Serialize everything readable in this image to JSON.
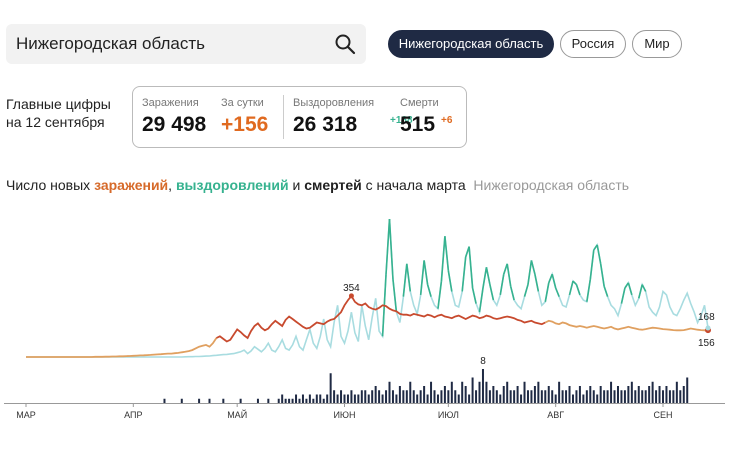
{
  "search": {
    "value": "Нижегородская область"
  },
  "tabs": [
    {
      "label": "Нижегородская область",
      "active": true
    },
    {
      "label": "Россия",
      "active": false
    },
    {
      "label": "Мир",
      "active": false
    }
  ],
  "key_figures": {
    "label_line1": "Главные цифры",
    "label_line2": "на 12 сентября",
    "infections_caption": "Заражения",
    "infections_value": "29 498",
    "daily_caption": "За сутки",
    "daily_value": "+156",
    "recoveries_caption": "Выздоровления",
    "recoveries_value": "26 318",
    "recoveries_delta": "+168",
    "deaths_caption": "Смерти",
    "deaths_value": "515",
    "deaths_delta": "+6"
  },
  "chart_title": {
    "prefix": "Число новых ",
    "infections": "заражений",
    "comma": ", ",
    "recoveries": "выздоровлений",
    "and": " и ",
    "deaths": "смертей",
    "suffix": " с начала марта",
    "region": "Нижегородская область"
  },
  "colors": {
    "infections": "#c84a2e",
    "infections_early": "#e0a060",
    "recoveries_light": "#a8dce0",
    "recoveries_peak": "#36b28f",
    "deaths": "#1f2a44"
  },
  "chart_data": {
    "type": "line",
    "x_labels": [
      "МАР",
      "АПР",
      "МАЙ",
      "ИЮН",
      "ИЮЛ",
      "АВГ",
      "СЕН"
    ],
    "start": "2020-03-01",
    "end": "2020-09-12",
    "series": [
      {
        "key": "infections",
        "values": [
          0,
          0,
          0,
          0,
          0,
          0,
          0,
          0,
          0,
          0,
          0,
          0,
          0,
          0,
          0,
          0,
          0,
          0,
          0,
          0,
          1,
          1,
          1,
          2,
          2,
          3,
          3,
          4,
          4,
          5,
          6,
          7,
          8,
          9,
          10,
          11,
          12,
          14,
          15,
          16,
          18,
          20,
          20,
          22,
          24,
          27,
          30,
          34,
          40,
          50,
          60,
          65,
          70,
          60,
          80,
          110,
          120,
          105,
          90,
          100,
          130,
          160,
          145,
          125,
          110,
          150,
          180,
          195,
          170,
          155,
          165,
          190,
          210,
          195,
          180,
          215,
          235,
          220,
          205,
          190,
          175,
          165,
          170,
          185,
          200,
          195,
          190,
          205,
          215,
          220,
          240,
          260,
          300,
          330,
          354,
          320,
          305,
          300,
          310,
          290,
          280,
          275,
          285,
          300,
          295,
          280,
          270,
          265,
          250,
          245,
          245,
          240,
          250,
          245,
          240,
          235,
          245,
          240,
          230,
          240,
          245,
          235,
          230,
          225,
          235,
          240,
          230,
          220,
          230,
          240,
          235,
          225,
          230,
          240,
          235,
          225,
          220,
          225,
          230,
          235,
          230,
          225,
          215,
          210,
          200,
          205,
          210,
          200,
          195,
          190,
          200,
          210,
          205,
          195,
          190,
          200,
          195,
          185,
          180,
          175,
          180,
          175,
          170,
          175,
          180,
          175,
          170,
          165,
          170,
          175,
          165,
          160,
          165,
          170,
          175,
          170,
          165,
          160,
          158,
          162,
          166,
          170,
          168,
          165,
          162,
          160,
          158,
          156,
          155,
          155,
          156,
          160,
          165,
          162,
          158,
          156,
          155,
          156
        ]
      },
      {
        "key": "recoveries",
        "values": [
          0,
          0,
          0,
          0,
          0,
          0,
          0,
          0,
          0,
          0,
          0,
          0,
          0,
          0,
          0,
          0,
          0,
          0,
          0,
          0,
          0,
          0,
          0,
          0,
          0,
          0,
          0,
          0,
          0,
          0,
          0,
          0,
          0,
          0,
          0,
          0,
          0,
          0,
          0,
          0,
          0,
          0,
          0,
          0,
          0,
          0,
          1,
          2,
          2,
          3,
          3,
          4,
          5,
          6,
          8,
          10,
          12,
          14,
          15,
          18,
          20,
          25,
          30,
          40,
          20,
          35,
          60,
          45,
          30,
          50,
          80,
          40,
          30,
          60,
          100,
          50,
          40,
          70,
          120,
          60,
          40,
          100,
          160,
          80,
          50,
          120,
          220,
          100,
          60,
          200,
          300,
          120,
          80,
          150,
          260,
          140,
          90,
          300,
          180,
          100,
          230,
          340,
          150,
          120,
          480,
          800,
          450,
          260,
          200,
          350,
          540,
          380,
          300,
          250,
          360,
          560,
          420,
          350,
          300,
          280,
          440,
          700,
          500,
          380,
          300,
          290,
          380,
          580,
          640,
          400,
          310,
          260,
          400,
          520,
          420,
          330,
          300,
          360,
          480,
          540,
          410,
          330,
          300,
          280,
          350,
          420,
          560,
          480,
          380,
          300,
          320,
          430,
          480,
          400,
          350,
          300,
          290,
          360,
          440,
          420,
          360,
          330,
          320,
          450,
          620,
          650,
          540,
          410,
          350,
          300,
          280,
          240,
          310,
          400,
          430,
          360,
          300,
          340,
          420,
          380,
          290,
          260,
          240,
          290,
          380,
          360,
          290,
          250,
          240,
          280,
          330,
          370,
          310,
          260,
          200,
          240,
          300,
          168
        ]
      },
      {
        "key": "deaths",
        "values": [
          0,
          0,
          0,
          0,
          0,
          0,
          0,
          0,
          0,
          0,
          0,
          0,
          0,
          0,
          0,
          0,
          0,
          0,
          0,
          0,
          0,
          0,
          0,
          0,
          0,
          0,
          0,
          0,
          0,
          0,
          0,
          0,
          0,
          0,
          0,
          0,
          0,
          0,
          0,
          0,
          1,
          0,
          0,
          0,
          0,
          1,
          0,
          0,
          0,
          0,
          1,
          0,
          0,
          1,
          0,
          0,
          0,
          1,
          0,
          0,
          0,
          0,
          1,
          0,
          0,
          0,
          0,
          1,
          0,
          0,
          1,
          0,
          0,
          1,
          2,
          1,
          1,
          1,
          2,
          1,
          2,
          1,
          2,
          1,
          2,
          2,
          1,
          2,
          7,
          3,
          2,
          3,
          2,
          2,
          3,
          2,
          2,
          3,
          3,
          2,
          3,
          4,
          3,
          2,
          3,
          5,
          3,
          2,
          4,
          3,
          3,
          5,
          3,
          2,
          3,
          4,
          2,
          5,
          3,
          2,
          3,
          4,
          3,
          5,
          3,
          2,
          5,
          4,
          2,
          6,
          3,
          5,
          8,
          5,
          3,
          4,
          3,
          2,
          4,
          5,
          3,
          3,
          4,
          2,
          5,
          3,
          3,
          4,
          5,
          3,
          3,
          4,
          3,
          2,
          5,
          3,
          3,
          4,
          2,
          3,
          4,
          2,
          3,
          4,
          3,
          2,
          4,
          3,
          3,
          5,
          3,
          4,
          3,
          3,
          4,
          5,
          3,
          4,
          3,
          3,
          4,
          5,
          3,
          4,
          3,
          4,
          3,
          3,
          5,
          3,
          4,
          6
        ]
      }
    ],
    "annotations": [
      {
        "label": "354",
        "series": "infections",
        "day": 94
      },
      {
        "label": "8",
        "series": "deaths",
        "day": 132
      },
      {
        "label": "168",
        "series": "recoveries",
        "day": "last"
      },
      {
        "label": "156",
        "series": "infections",
        "day": "last"
      },
      {
        "label": "6",
        "series": "deaths",
        "day": "last"
      }
    ],
    "ylim_cases": [
      0,
      800
    ],
    "ylim_deaths": [
      0,
      8
    ]
  }
}
